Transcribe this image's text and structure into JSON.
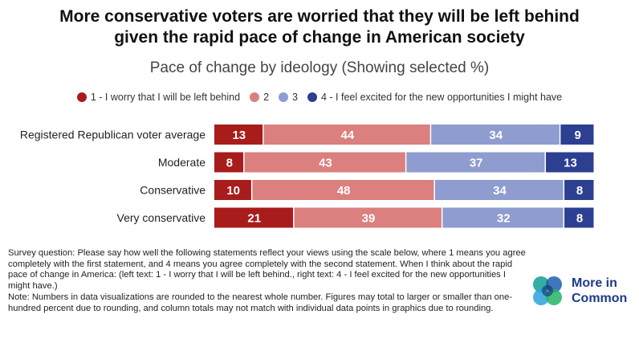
{
  "title_line1": "More conservative voters are worried that they will be left behind",
  "title_line2": "given the rapid pace of change in American society",
  "chart_data": {
    "type": "bar",
    "subtitle": "Pace of change by ideology (Showing selected %)",
    "orientation": "horizontal",
    "stacked": true,
    "categories": [
      "Registered Republican voter average",
      "Moderate",
      "Conservative",
      "Very conservative"
    ],
    "series": [
      {
        "name": "1 - I worry that I will be left behind",
        "color": "#a81c1c",
        "values": [
          13,
          8,
          10,
          21
        ]
      },
      {
        "name": "2",
        "color": "#db7f7f",
        "values": [
          44,
          43,
          48,
          39
        ]
      },
      {
        "name": "3",
        "color": "#8e9ccf",
        "values": [
          34,
          37,
          34,
          32
        ]
      },
      {
        "name": "4 - I feel excited for the new opportunities I might have",
        "color": "#2d3f91",
        "values": [
          9,
          13,
          8,
          8
        ]
      }
    ],
    "legend_position": "top"
  },
  "footnote": {
    "question": "Survey question: Please say how well the following statements reflect your views using the scale below, where 1 means you agree completely with the first statement, and 4 means you agree completely with the second statement. When I think about the rapid pace of change in America: (left text: 1 - I worry that I will be left behind., right text: 4 - I feel excited for the new opportunities I might have.)",
    "note": "Note: Numbers in data visualizations are rounded to the nearest whole number. Figures may total to larger or smaller than one-hundred percent due to rounding, and column totals may not match with individual data points in graphics due to rounding."
  },
  "logo": {
    "line1": "More in",
    "line2": "Common"
  }
}
